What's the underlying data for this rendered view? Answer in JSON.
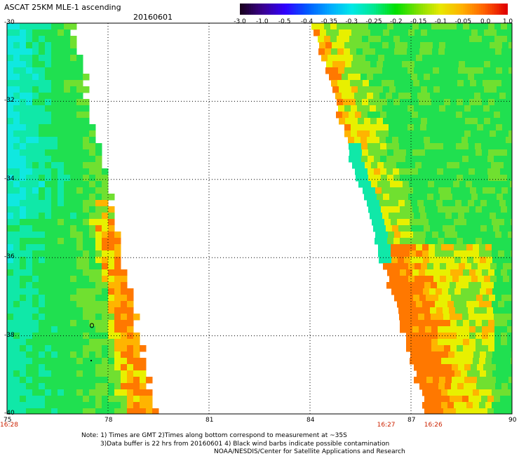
{
  "header": {
    "title": "ASCAT 25KM MLE-1 ascending",
    "date": "20160601"
  },
  "colorbar": {
    "labels": [
      "-3.0",
      "-1.0",
      "-0.5",
      "-0.4",
      "-0.35",
      "-0.3",
      "-0.25",
      "-0.2",
      "-0.15",
      "-0.1",
      "-0.05",
      "0.0",
      "1.0"
    ],
    "colors": [
      "#1a0020",
      "#3a0090",
      "#3000ff",
      "#005aff",
      "#00a8ff",
      "#00e8e8",
      "#00e890",
      "#00e000",
      "#80e000",
      "#e8e800",
      "#ffb000",
      "#ff6000",
      "#e00000"
    ]
  },
  "map": {
    "lat_labels": [
      "-30",
      "-32",
      "-34",
      "-36",
      "-38",
      "-40"
    ],
    "lon_labels": [
      "75",
      "78",
      "81",
      "84",
      "87",
      "90"
    ],
    "time_labels": [
      {
        "text": "16:28",
        "lon": 75
      },
      {
        "text": "16:27",
        "lon": 86.2
      },
      {
        "text": "16:26",
        "lon": 87.6
      }
    ],
    "lon_range": [
      75,
      90
    ],
    "lat_range": [
      -30,
      -40
    ],
    "grid": "dotted"
  },
  "footer": {
    "note_line1": "Note: 1) Times are GMT 2)Times along bottom correspond to measurement at ~35S",
    "note_line2": "3)Data buffer is 22 hrs from 20160601 4) Black wind barbs indicate possible contamination",
    "note_line3": "NOAA/NESDIS/Center for Satellite Applications and Research"
  }
}
